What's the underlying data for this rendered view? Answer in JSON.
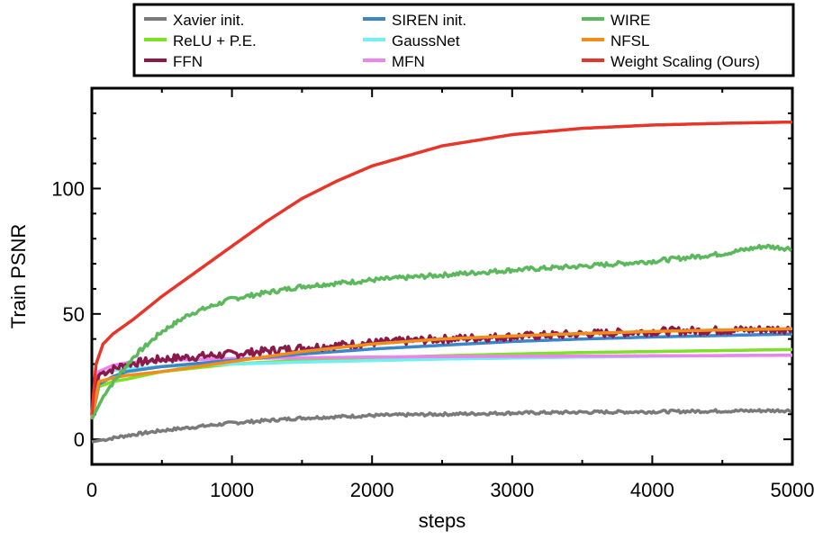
{
  "chart_data": {
    "type": "line",
    "title": "",
    "xlabel": "steps",
    "ylabel": "Train PSNR",
    "xlim": [
      0,
      5000
    ],
    "ylim": [
      -10,
      140
    ],
    "xticks": [
      0,
      1000,
      2000,
      3000,
      4000,
      5000
    ],
    "yticks": [
      0,
      50,
      100
    ],
    "legend_position": "top",
    "series": [
      {
        "name": "Xavier init.",
        "color": "#7a7a7a",
        "x": [
          0,
          250,
          500,
          1000,
          1500,
          2000,
          2500,
          3000,
          3500,
          4000,
          4500,
          5000
        ],
        "y": [
          -1,
          1.5,
          3.5,
          6.5,
          8.5,
          9.5,
          10,
          10.5,
          10.8,
          11,
          11.3,
          11.5
        ]
      },
      {
        "name": "ReLU + P.E.",
        "color": "#7fe02a",
        "x": [
          0,
          50,
          150,
          250,
          500,
          1000,
          1500,
          2000,
          2500,
          3000,
          3500,
          4000,
          4500,
          5000
        ],
        "y": [
          8,
          21,
          23,
          24,
          27,
          30,
          31.5,
          32.5,
          33.3,
          34,
          34.6,
          35,
          35.4,
          35.8
        ]
      },
      {
        "name": "FFN",
        "color": "#8b1a4a",
        "x": [
          0,
          50,
          150,
          250,
          500,
          1000,
          1500,
          2000,
          2500,
          3000,
          3500,
          4000,
          4500,
          5000
        ],
        "y": [
          8,
          26,
          28,
          30,
          32,
          34,
          36.5,
          38.5,
          40,
          41,
          42,
          43,
          43.5,
          44
        ]
      },
      {
        "name": "SIREN init.",
        "color": "#3a86c8",
        "x": [
          0,
          50,
          150,
          250,
          500,
          1000,
          1500,
          2000,
          2500,
          3000,
          3500,
          4000,
          4500,
          5000
        ],
        "y": [
          8,
          22,
          25,
          27,
          29,
          31.5,
          34,
          36,
          37.5,
          39,
          40,
          40.8,
          41.4,
          42
        ]
      },
      {
        "name": "GaussNet",
        "color": "#70f0f0",
        "x": [
          0,
          50,
          150,
          250,
          500,
          1000,
          1500,
          2000,
          2500,
          3000,
          3500,
          4000,
          4500,
          5000
        ],
        "y": [
          8,
          26,
          27.5,
          28,
          29,
          30,
          30.8,
          31.4,
          32,
          32.4,
          32.8,
          33.1,
          33.4,
          33.6
        ]
      },
      {
        "name": "MFN",
        "color": "#ee82ee",
        "x": [
          0,
          50,
          150,
          250,
          500,
          1000,
          1500,
          2000,
          2500,
          3000,
          3500,
          4000,
          4500,
          5000
        ],
        "y": [
          8,
          27,
          29.5,
          30.5,
          31.5,
          32.2,
          32.5,
          32.8,
          33,
          33.1,
          33.2,
          33.3,
          33.4,
          33.5
        ]
      },
      {
        "name": "WIRE",
        "color": "#5cb85c",
        "x": [
          0,
          100,
          300,
          500,
          700,
          1000,
          1500,
          2000,
          2500,
          3000,
          3500,
          4000,
          4500,
          4800,
          5000
        ],
        "y": [
          8,
          19,
          33,
          43,
          50,
          56,
          61,
          63.5,
          65.5,
          67.5,
          69,
          71,
          74,
          77,
          76
        ]
      },
      {
        "name": "NFSL",
        "color": "#f28c1a",
        "x": [
          0,
          50,
          150,
          250,
          500,
          1000,
          1500,
          2000,
          2500,
          3000,
          3500,
          4000,
          4500,
          5000
        ],
        "y": [
          8,
          23,
          24.5,
          25.5,
          27,
          31,
          35,
          38,
          40,
          41.2,
          42.2,
          43,
          43.6,
          44.1
        ]
      },
      {
        "name": "Weight Scaling (Ours)",
        "color": "#e8352a",
        "x": [
          0,
          30,
          80,
          150,
          300,
          500,
          750,
          1000,
          1250,
          1500,
          1750,
          2000,
          2500,
          3000,
          3500,
          4000,
          4500,
          5000
        ],
        "y": [
          10,
          30,
          38,
          42,
          48,
          57,
          67,
          77,
          87,
          96,
          103,
          109,
          117,
          121.5,
          124,
          125.3,
          126,
          126.5
        ]
      }
    ],
    "noisy_series": [
      "Xavier init.",
      "FFN",
      "WIRE"
    ]
  }
}
